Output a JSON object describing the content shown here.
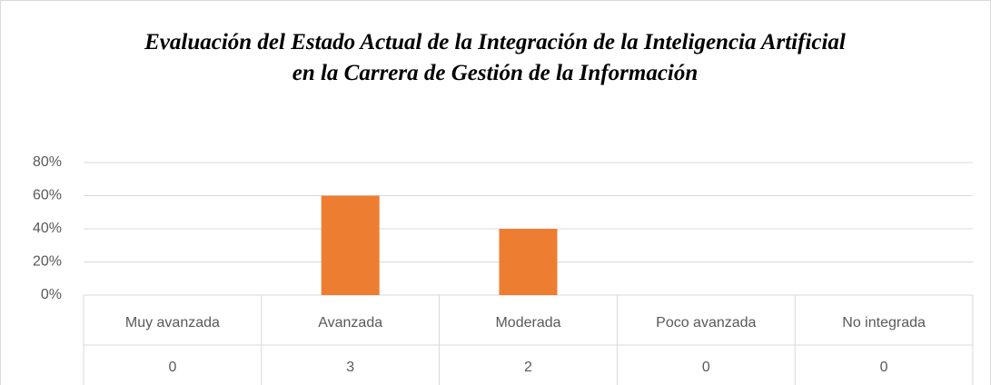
{
  "chart_data": {
    "type": "bar",
    "title": "Evaluación del Estado Actual de la Integración de la Inteligencia Artificial en la Carrera de Gestión de la Información",
    "categories": [
      "Muy avanzada",
      "Avanzada",
      "Moderada",
      "Poco avanzada",
      "No integrada"
    ],
    "values": [
      0,
      60,
      40,
      0,
      0
    ],
    "counts": [
      0,
      3,
      2,
      0,
      0
    ],
    "color": "#ed7d31",
    "ylim": [
      0,
      80
    ],
    "yticks": [
      {
        "value": 0,
        "label": "0%"
      },
      {
        "value": 20,
        "label": "20%"
      },
      {
        "value": 40,
        "label": "40%"
      },
      {
        "value": 60,
        "label": "60%"
      },
      {
        "value": 80,
        "label": "80%"
      }
    ],
    "grid": true
  }
}
